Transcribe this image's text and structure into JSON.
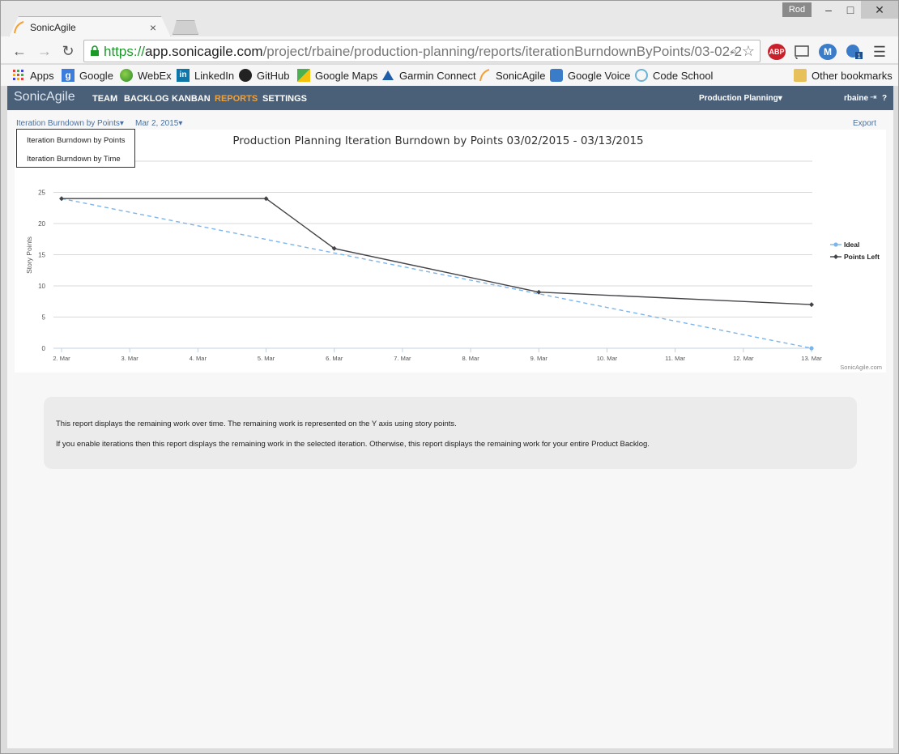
{
  "browser": {
    "tab_title": "SonicAgile",
    "user_badge": "Rod",
    "url": {
      "scheme": "https://",
      "host": "app.sonicagile.com",
      "path": "/project/rbaine/production-planning/reports/iterationBurndownByPoints/03-02-2"
    },
    "bookmarks": [
      {
        "label": "Apps",
        "icon": "apps-grid-icon"
      },
      {
        "label": "Google",
        "icon": "google-icon"
      },
      {
        "label": "WebEx",
        "icon": "webex-icon"
      },
      {
        "label": "LinkedIn",
        "icon": "linkedin-icon"
      },
      {
        "label": "GitHub",
        "icon": "github-icon"
      },
      {
        "label": "Google Maps",
        "icon": "google-maps-icon"
      },
      {
        "label": "Garmin Connect",
        "icon": "garmin-icon"
      },
      {
        "label": "SonicAgile",
        "icon": "sonicagile-icon"
      },
      {
        "label": "Google Voice",
        "icon": "google-voice-icon"
      },
      {
        "label": "Code School",
        "icon": "code-school-icon"
      }
    ],
    "other_bookmarks": "Other bookmarks",
    "ext_abp": "ABP",
    "ext_m": "M",
    "ext_badge": "1"
  },
  "app": {
    "logo": "SonicAgile",
    "nav": [
      {
        "label": "TEAM"
      },
      {
        "label": "BACKLOG"
      },
      {
        "label": "KANBAN"
      },
      {
        "label": "REPORTS"
      },
      {
        "label": "SETTINGS"
      }
    ],
    "project": "Production Planning",
    "user": "rbaine",
    "help": "?"
  },
  "report": {
    "selected_report": "Iteration Burndown by Points",
    "selected_date": "Mar 2, 2015",
    "export": "Export",
    "menu_items": [
      "Iteration Burndown by Points",
      "Iteration Burndown by Time"
    ],
    "credit": "SonicAgile.com",
    "info_lines": [
      "This report displays the remaining work over time. The remaining work is represented on the Y axis using story points.",
      "If you enable iterations then this report displays the remaining work in the selected iteration. Otherwise, this report displays the remaining work for your entire Product Backlog."
    ]
  },
  "colors": {
    "header_bg": "#4a6079",
    "active_nav": "#f0a13a",
    "ideal": "#7cb5ec",
    "points_left": "#434348",
    "link": "#4a6f9e"
  },
  "chart_data": {
    "type": "line",
    "title": "Production Planning Iteration Burndown by Points 03/02/2015 - 03/13/2015",
    "xlabel": "",
    "ylabel": "Story Points",
    "categories": [
      "2. Mar",
      "3. Mar",
      "4. Mar",
      "5. Mar",
      "6. Mar",
      "7. Mar",
      "8. Mar",
      "9. Mar",
      "10. Mar",
      "11. Mar",
      "12. Mar",
      "13. Mar"
    ],
    "ylim": [
      0,
      30
    ],
    "yticks": [
      0,
      5,
      10,
      15,
      20,
      25
    ],
    "grid": true,
    "legend_position": "right",
    "series": [
      {
        "name": "Ideal",
        "style": "dashed",
        "points": [
          [
            0,
            24
          ],
          [
            11,
            0
          ]
        ]
      },
      {
        "name": "Points Left",
        "style": "solid",
        "points": [
          [
            0,
            24
          ],
          [
            3,
            24
          ],
          [
            4,
            16
          ],
          [
            7,
            9
          ],
          [
            11,
            7
          ]
        ]
      }
    ]
  }
}
